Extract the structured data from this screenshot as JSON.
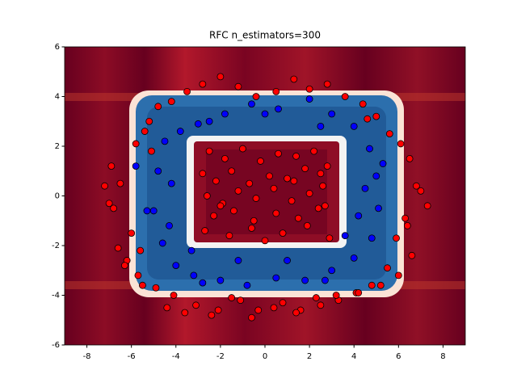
{
  "chart_data": {
    "type": "scatter",
    "title": "RFC n_estimators=300",
    "xlim": [
      -9,
      9
    ],
    "ylim": [
      -6,
      6
    ],
    "xticks": [
      -8,
      -6,
      -4,
      -2,
      0,
      2,
      4,
      6,
      8
    ],
    "yticks": [
      -6,
      -4,
      -2,
      0,
      2,
      4,
      6
    ],
    "series": [
      {
        "color": "#ff0000",
        "x": [
          -2.5,
          -1.8,
          -1.0,
          -0.2,
          0.6,
          1.4,
          2.2,
          2.8,
          -2.8,
          -2.2,
          -1.5,
          -0.7,
          0.2,
          1.0,
          1.8,
          2.6,
          -2.6,
          -1.9,
          -1.2,
          -0.4,
          0.4,
          1.2,
          2.0,
          2.7,
          -2.3,
          -1.4,
          -0.5,
          0.5,
          1.5,
          2.4,
          -2.7,
          -1.6,
          -0.6,
          0.8,
          1.9,
          2.9,
          -2.0,
          0.0,
          1.3,
          2.5,
          -6.5,
          -7.2,
          -6.8,
          -6.0,
          -5.6,
          -6.2,
          -6.6,
          -5.8,
          -5.4,
          -6.9,
          -5.2,
          -4.8,
          -4.2,
          -3.5,
          -2.8,
          -2.0,
          -1.2,
          -0.4,
          0.5,
          1.3,
          2.0,
          2.8,
          3.6,
          4.4,
          5.0,
          5.6,
          6.1,
          6.5,
          6.8,
          7.3,
          6.3,
          5.9,
          6.6,
          5.5,
          6.0,
          4.8,
          4.1,
          3.3,
          2.5,
          1.6,
          0.8,
          -0.3,
          -1.1,
          -2.1,
          -3.1,
          -4.1,
          -4.9,
          -5.7,
          -6.3,
          -5.5,
          -4.4,
          -3.6,
          -2.4,
          -1.5,
          -0.6,
          0.4,
          1.4,
          2.3,
          3.2,
          4.2,
          5.2,
          6.4,
          7.0,
          -7.0,
          -5.1,
          4.6
        ],
        "y": [
          1.8,
          1.5,
          1.9,
          1.4,
          1.7,
          1.6,
          1.8,
          1.2,
          0.9,
          0.6,
          1.0,
          0.5,
          0.8,
          0.7,
          1.1,
          0.4,
          0.0,
          -0.3,
          0.2,
          -0.1,
          0.3,
          -0.2,
          0.1,
          -0.4,
          -0.8,
          -0.6,
          -1.0,
          -0.7,
          -0.9,
          -0.5,
          -1.4,
          -1.6,
          -1.3,
          -1.5,
          -1.2,
          -1.7,
          -0.4,
          -1.8,
          0.6,
          0.9,
          0.5,
          0.4,
          -0.5,
          -1.5,
          -2.2,
          -2.6,
          -2.1,
          2.1,
          2.6,
          1.2,
          3.0,
          3.6,
          3.8,
          4.2,
          4.5,
          4.8,
          4.4,
          4.0,
          4.2,
          4.7,
          4.3,
          4.5,
          4.0,
          3.7,
          3.2,
          2.5,
          2.1,
          1.5,
          0.4,
          -0.4,
          -0.9,
          -1.7,
          -2.4,
          -2.9,
          -3.2,
          -3.6,
          -3.9,
          -4.2,
          -4.4,
          -4.6,
          -4.3,
          -4.6,
          -4.2,
          -4.6,
          -4.4,
          -4.0,
          -3.7,
          -3.2,
          -2.8,
          -3.6,
          -4.5,
          -4.7,
          -4.8,
          -4.1,
          -4.9,
          -4.5,
          -4.7,
          -4.1,
          -4.0,
          -3.9,
          -3.6,
          -1.2,
          0.2,
          -0.3,
          1.8,
          3.1
        ]
      },
      {
        "color": "#0000ff",
        "x": [
          -4.5,
          -4.8,
          -5.0,
          -4.6,
          -4.0,
          -3.2,
          -2.0,
          -0.8,
          0.5,
          1.8,
          3.0,
          4.0,
          4.8,
          5.1,
          5.0,
          4.7,
          4.0,
          3.0,
          2.0,
          0.6,
          -0.6,
          -1.8,
          -3.0,
          -3.8,
          -5.3,
          -4.2,
          4.2,
          3.6,
          -3.3,
          2.5,
          -2.5,
          0.0,
          1.0,
          -1.2,
          4.5,
          -4.3,
          5.3,
          -5.8,
          2.7,
          -2.8
        ],
        "y": [
          2.2,
          1.0,
          -0.6,
          -1.9,
          -2.8,
          -3.2,
          -3.4,
          -3.6,
          -3.3,
          -3.4,
          -3.0,
          -2.5,
          -1.7,
          -0.5,
          0.8,
          1.9,
          2.8,
          3.3,
          3.9,
          3.5,
          3.7,
          3.3,
          2.9,
          2.6,
          -0.6,
          0.5,
          -0.8,
          -1.6,
          -2.2,
          2.8,
          3.0,
          3.3,
          -2.6,
          -2.6,
          0.3,
          -1.2,
          1.3,
          1.2,
          -3.4,
          -3.5
        ]
      }
    ]
  }
}
